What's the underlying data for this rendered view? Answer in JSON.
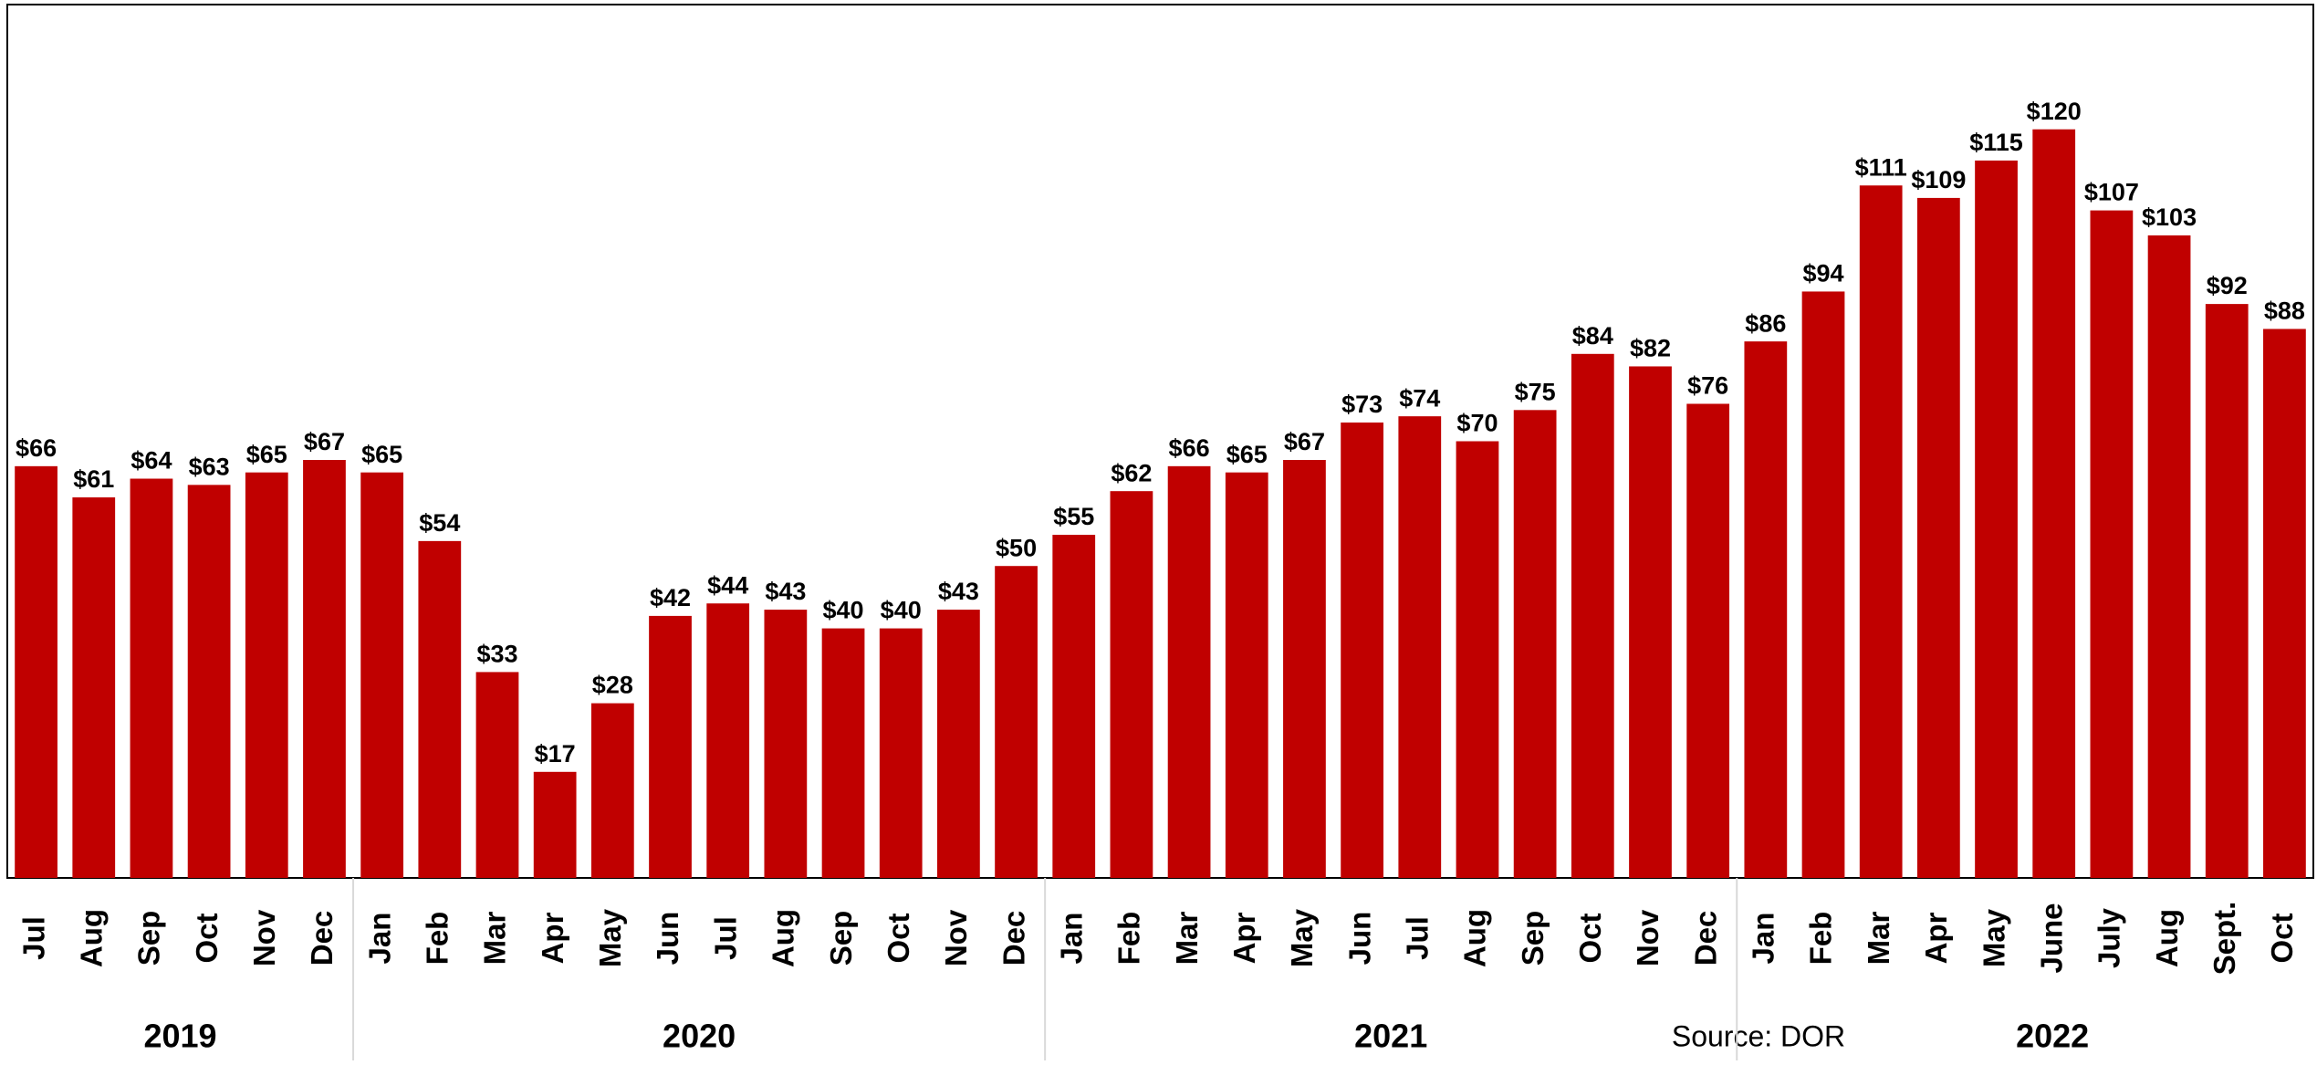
{
  "chart_data": {
    "type": "bar",
    "categories": [
      "Jul",
      "Aug",
      "Sep",
      "Oct",
      "Nov",
      "Dec",
      "Jan",
      "Feb",
      "Mar",
      "Apr",
      "May",
      "Jun",
      "Jul",
      "Aug",
      "Sep",
      "Oct",
      "Nov",
      "Dec",
      "Jan",
      "Feb",
      "Mar",
      "Apr",
      "May",
      "Jun",
      "Jul",
      "Aug",
      "Sep",
      "Oct",
      "Nov",
      "Dec",
      "Jan",
      "Feb",
      "Mar",
      "Apr",
      "May",
      "June",
      "July",
      "Aug",
      "Sept.",
      "Oct"
    ],
    "groups": [
      {
        "label": "2019",
        "size": 6
      },
      {
        "label": "2020",
        "size": 12
      },
      {
        "label": "2021",
        "size": 12
      },
      {
        "label": "2022",
        "size": 10
      }
    ],
    "values": [
      66,
      61,
      64,
      63,
      65,
      67,
      65,
      54,
      33,
      17,
      28,
      42,
      44,
      43,
      40,
      40,
      43,
      50,
      55,
      62,
      66,
      65,
      67,
      73,
      74,
      70,
      75,
      84,
      82,
      76,
      86,
      94,
      111,
      109,
      115,
      120,
      107,
      103,
      92,
      88
    ],
    "value_labels": [
      "$66",
      "$61",
      "$64",
      "$63",
      "$65",
      "$67",
      "$65",
      "$54",
      "$33",
      "$17",
      "$28",
      "$42",
      "$44",
      "$43",
      "$40",
      "$40",
      "$43",
      "$50",
      "$55",
      "$62",
      "$66",
      "$65",
      "$67",
      "$73",
      "$74",
      "$70",
      "$75",
      "$84",
      "$82",
      "$76",
      "$86",
      "$94",
      "$111",
      "$109",
      "$115",
      "$120",
      "$107",
      "$103",
      "$92",
      "$88"
    ],
    "color": "#c00000",
    "ylim": [
      0,
      140
    ],
    "annotation": "Source: DOR"
  }
}
